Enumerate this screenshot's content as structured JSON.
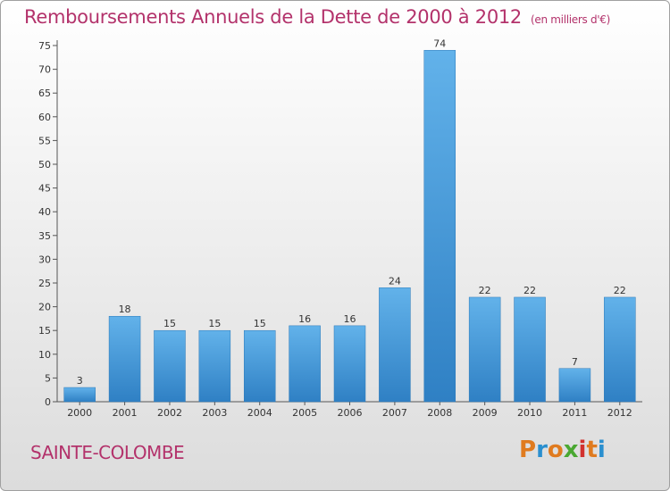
{
  "header": {
    "title": "Remboursements Annuels de la Dette de 2000 à 2012",
    "unit": "(en milliers d'€)"
  },
  "footer": {
    "commune": "SAINTE-COLOMBE",
    "logo": {
      "text": "Proxiti",
      "letters": [
        {
          "char": "P",
          "color": "#e07b1f"
        },
        {
          "char": "r",
          "color": "#2a8fcf"
        },
        {
          "char": "o",
          "color": "#e07b1f"
        },
        {
          "char": "x",
          "color": "#4aa832"
        },
        {
          "char": "i",
          "color": "#d2312e"
        },
        {
          "char": "t",
          "color": "#e07b1f"
        },
        {
          "char": "i",
          "color": "#2a8fcf"
        }
      ]
    }
  },
  "chart_data": {
    "type": "bar",
    "categories": [
      "2000",
      "2001",
      "2002",
      "2003",
      "2004",
      "2005",
      "2006",
      "2007",
      "2008",
      "2009",
      "2010",
      "2011",
      "2012"
    ],
    "values": [
      3,
      18,
      15,
      15,
      15,
      16,
      16,
      24,
      74,
      22,
      22,
      7,
      22
    ],
    "value_labels": [
      "3",
      "18",
      "15",
      "15",
      "15",
      "16",
      "16",
      "24",
      "74",
      "22",
      "22",
      "7",
      "22"
    ],
    "y_ticks": [
      "0",
      "5",
      "10",
      "15",
      "20",
      "25",
      "30",
      "35",
      "40",
      "45",
      "50",
      "55",
      "60",
      "65",
      "70",
      "75"
    ],
    "ylim": [
      0,
      75
    ],
    "grid": false,
    "bar_color": "#3f97d9",
    "accent_color": "#b3326b"
  }
}
